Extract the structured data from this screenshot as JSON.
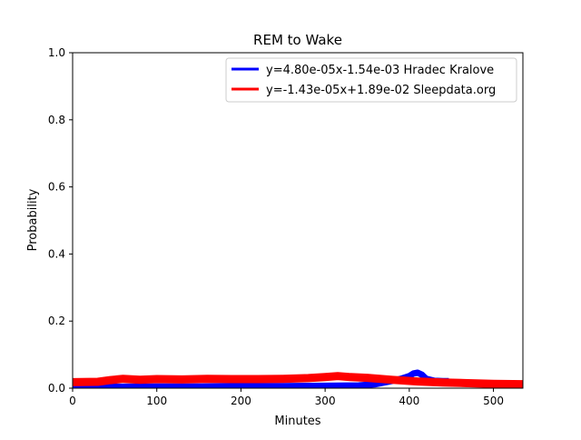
{
  "chart_data": {
    "type": "line",
    "title": "REM to Wake",
    "xlabel": "Minutes",
    "ylabel": "Probability",
    "xlim": [
      0,
      535
    ],
    "ylim": [
      0,
      1.0
    ],
    "xticks": [
      0,
      100,
      200,
      300,
      400,
      500
    ],
    "yticks": [
      0.0,
      0.2,
      0.4,
      0.6,
      0.8,
      1.0
    ],
    "xtick_labels": [
      "0",
      "100",
      "200",
      "300",
      "400",
      "500"
    ],
    "ytick_labels": [
      "0.0",
      "0.2",
      "0.4",
      "0.6",
      "0.8",
      "1.0"
    ],
    "grid": false,
    "legend_position": "top-right",
    "series": [
      {
        "name": "y=4.80e-05x-1.54e-03 Hradec Kralove",
        "color": "#0000ff",
        "x": [
          0,
          50,
          100,
          150,
          200,
          250,
          300,
          340,
          360,
          380,
          390,
          400,
          405,
          410,
          415,
          420,
          430,
          440,
          447
        ],
        "y": [
          0.003,
          0.004,
          0.005,
          0.005,
          0.006,
          0.006,
          0.007,
          0.008,
          0.012,
          0.022,
          0.028,
          0.036,
          0.044,
          0.046,
          0.04,
          0.028,
          0.022,
          0.021,
          0.021
        ]
      },
      {
        "name": "y=-1.43e-05x+1.89e-02 Sleepdata.org",
        "color": "#ff0000",
        "x": [
          0,
          30,
          45,
          60,
          80,
          100,
          130,
          160,
          190,
          220,
          250,
          280,
          300,
          315,
          330,
          350,
          380,
          410,
          440,
          470,
          500,
          535
        ],
        "y": [
          0.018,
          0.019,
          0.024,
          0.028,
          0.025,
          0.027,
          0.026,
          0.028,
          0.027,
          0.027,
          0.028,
          0.03,
          0.033,
          0.036,
          0.033,
          0.031,
          0.025,
          0.02,
          0.017,
          0.015,
          0.013,
          0.012
        ]
      }
    ]
  }
}
